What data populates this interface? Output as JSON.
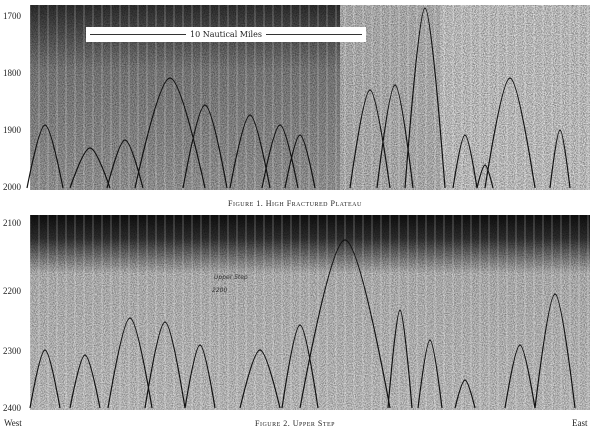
{
  "figure1": {
    "caption": "Figure 1. High Fractured Plateau",
    "depth_labels": [
      "1700",
      "1800",
      "1900",
      "2000"
    ],
    "scale_label": "10 Nautical Miles"
  },
  "figure2": {
    "caption": "Figure 2. Upper Step",
    "depth_labels": [
      "2100",
      "2200",
      "2300",
      "2400"
    ],
    "annotation_line1": "Upper Step",
    "annotation_line2": "2200",
    "west_label": "West",
    "east_label": "East"
  }
}
